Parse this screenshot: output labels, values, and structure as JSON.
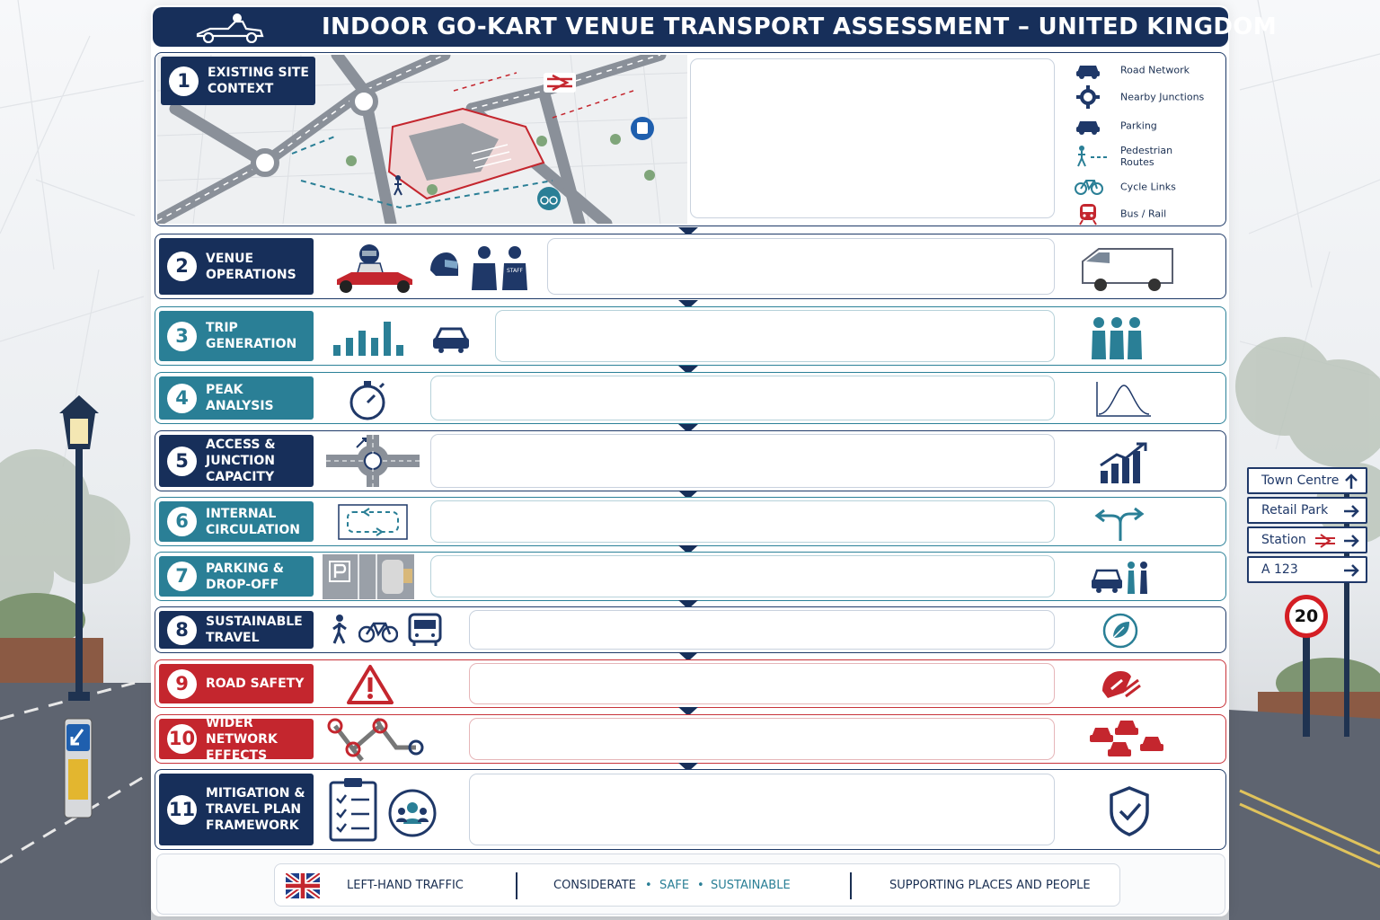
{
  "header": {
    "title": "INDOOR GO-KART VENUE TRANSPORT ASSESSMENT – UNITED KINGDOM"
  },
  "sections": [
    {
      "number": "1",
      "label": "Existing Site\nContext",
      "theme": "navy"
    },
    {
      "number": "2",
      "label": "Venue\nOperations",
      "theme": "navy"
    },
    {
      "number": "3",
      "label": "Trip\nGeneration",
      "theme": "teal"
    },
    {
      "number": "4",
      "label": "Peak\nAnalysis",
      "theme": "teal"
    },
    {
      "number": "5",
      "label": "Access &\nJunction\nCapacity",
      "theme": "navy"
    },
    {
      "number": "6",
      "label": "Internal\nCirculation",
      "theme": "teal"
    },
    {
      "number": "7",
      "label": "Parking &\nDrop-Off",
      "theme": "teal"
    },
    {
      "number": "8",
      "label": "Sustainable\nTravel",
      "theme": "navy"
    },
    {
      "number": "9",
      "label": "Road Safety",
      "theme": "red"
    },
    {
      "number": "10",
      "label": "Wider Network\nEffects",
      "theme": "red"
    },
    {
      "number": "11",
      "label": "Mitigation &\nTravel Plan\nFramework",
      "theme": "navy"
    }
  ],
  "legend": [
    {
      "icon": "car-icon",
      "label": "Road Network"
    },
    {
      "icon": "roundabout-icon",
      "label": "Nearby Junctions"
    },
    {
      "icon": "car-icon",
      "label": "Parking"
    },
    {
      "icon": "pedestrian-icon",
      "label": "Pedestrian\nRoutes"
    },
    {
      "icon": "bicycle-icon",
      "label": "Cycle Links"
    },
    {
      "icon": "train-icon",
      "label": "Bus / Rail"
    }
  ],
  "map": {
    "staff_shirt_text": "STAFF"
  },
  "footer": {
    "left": "Left-Hand Traffic",
    "middle_1": "Considerate",
    "middle_dot": "•",
    "middle_2": "Safe",
    "middle_3": "Sustainable",
    "right": "Supporting Places and People"
  },
  "street_signs": [
    {
      "label": "Town Centre",
      "arrow": "up"
    },
    {
      "label": "Retail Park",
      "arrow": "right"
    },
    {
      "label": "Station",
      "arrow": "right"
    },
    {
      "label": "A 123",
      "arrow": "right"
    }
  ],
  "speed_limit": "20",
  "colors": {
    "navy": "#172f5a",
    "teal": "#2a7f96",
    "red": "#c4262e"
  }
}
